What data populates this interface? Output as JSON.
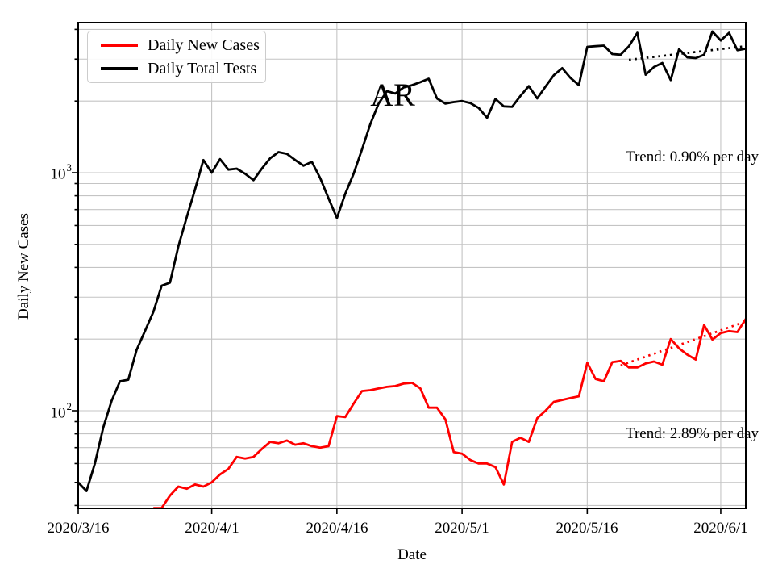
{
  "figure": {
    "title": "AR",
    "xlabel": "Date",
    "ylabel": "Daily New Cases"
  },
  "legend": {
    "position": "upper left",
    "items": [
      {
        "label": "Daily New Cases",
        "color": "#ff0000"
      },
      {
        "label": "Daily Total Tests",
        "color": "#000000"
      }
    ]
  },
  "annotations": [
    {
      "label": "Trend: 0.90% per day"
    },
    {
      "label": "Trend: 2.89% per day"
    }
  ],
  "axes": {
    "y_ticks": [
      {
        "base": "10",
        "exp": "3"
      },
      {
        "base": "10",
        "exp": "2"
      }
    ],
    "x_ticks": [
      "2020/3/16",
      "2020/4/1",
      "2020/4/16",
      "2020/5/1",
      "2020/5/16",
      "2020/6/1"
    ]
  },
  "chart_data": {
    "type": "line",
    "title": "AR",
    "xlabel": "Date",
    "ylabel": "Daily New Cases",
    "yscale": "log",
    "ylim": [
      38,
      4300
    ],
    "grid": true,
    "legend_position": "upper left",
    "x_unit": "days since 2020/3/16",
    "x_tick_days": [
      0,
      16,
      31,
      46,
      61,
      77
    ],
    "x_tick_labels": [
      "2020/3/16",
      "2020/4/1",
      "2020/4/16",
      "2020/5/1",
      "2020/5/16",
      "2020/6/1"
    ],
    "y_grid_values": [
      40,
      50,
      60,
      70,
      80,
      90,
      100,
      200,
      300,
      400,
      500,
      600,
      700,
      800,
      900,
      1000,
      2000,
      3000,
      4000
    ],
    "y_major_ticks": [
      100,
      1000
    ],
    "series": [
      {
        "name": "Daily New Cases",
        "color": "#ff0000",
        "values": [
          null,
          null,
          null,
          null,
          null,
          null,
          null,
          null,
          null,
          39,
          39,
          44,
          48,
          47,
          49,
          48,
          50,
          54,
          57,
          64,
          63,
          64,
          69,
          74,
          73,
          75,
          72,
          73,
          71,
          70,
          71,
          95,
          94,
          107,
          121,
          122,
          124,
          126,
          127,
          130,
          131,
          124,
          103,
          103,
          92,
          67,
          66,
          62,
          60,
          60,
          58,
          49,
          74,
          77,
          74,
          93,
          100,
          109,
          111,
          113,
          115,
          159,
          136,
          133,
          160,
          162,
          152,
          152,
          158,
          161,
          156,
          200,
          183,
          172,
          164,
          229,
          199,
          212,
          216,
          214,
          243
        ]
      },
      {
        "name": "Daily Total Tests",
        "color": "#000000",
        "values": [
          50,
          46,
          60,
          85,
          110,
          133,
          135,
          180,
          216,
          260,
          335,
          345,
          490,
          650,
          850,
          1130,
          1000,
          1140,
          1030,
          1040,
          990,
          930,
          1040,
          1150,
          1220,
          1200,
          1130,
          1070,
          1110,
          950,
          780,
          645,
          815,
          990,
          1250,
          1600,
          1950,
          2200,
          2150,
          2280,
          2330,
          2400,
          2480,
          2050,
          1950,
          1980,
          2000,
          1960,
          1870,
          1700,
          2040,
          1900,
          1890,
          2100,
          2310,
          2050,
          2300,
          2570,
          2750,
          2500,
          2330,
          3380,
          3400,
          3420,
          3150,
          3130,
          3400,
          3870,
          2580,
          2780,
          2890,
          2450,
          3300,
          3050,
          3030,
          3130,
          3920,
          3590,
          3870,
          3270,
          3320
        ]
      }
    ],
    "trend_lines": [
      {
        "name": "tests-trend",
        "color": "#000000",
        "label": "Trend: 0.90% per day",
        "rate_percent_per_day": 0.9,
        "start_day": 66,
        "end_day": 80,
        "start_value": 2980,
        "end_value": 3400
      },
      {
        "name": "cases-trend",
        "color": "#ff0000",
        "label": "Trend: 2.89% per day",
        "rate_percent_per_day": 2.89,
        "start_day": 65,
        "end_day": 80,
        "start_value": 155,
        "end_value": 237
      }
    ]
  }
}
